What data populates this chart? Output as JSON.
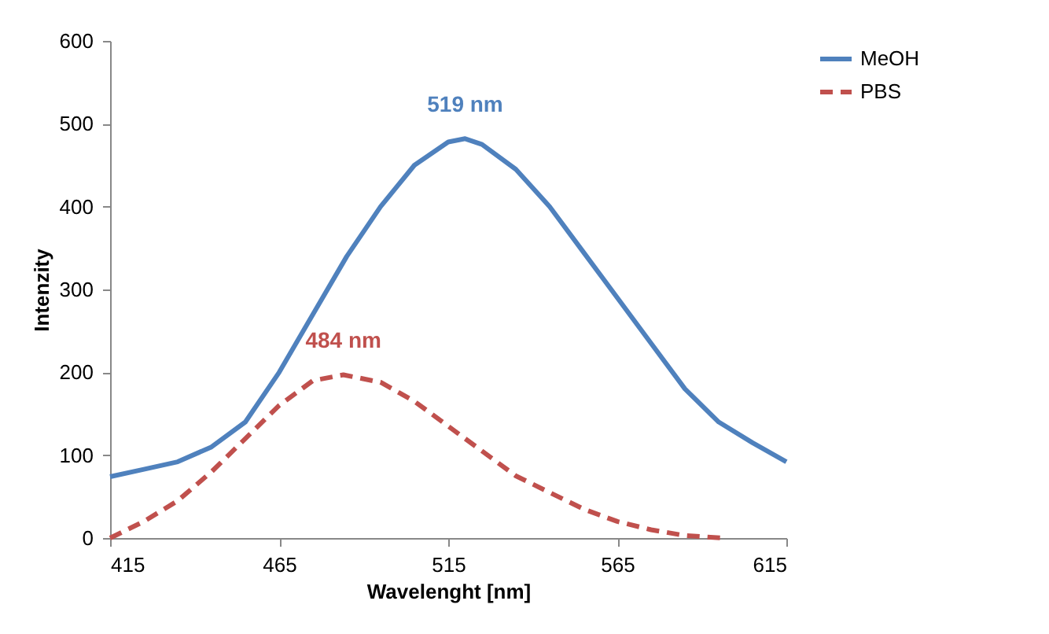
{
  "chart_data": {
    "type": "line",
    "xlabel": "Wavelenght [nm]",
    "ylabel": "Intenzity",
    "xlim": [
      415,
      615
    ],
    "ylim": [
      0,
      600
    ],
    "xticks": [
      415,
      465,
      515,
      565,
      615
    ],
    "yticks": [
      0,
      100,
      200,
      300,
      400,
      500,
      600
    ],
    "grid": false,
    "legend": "right",
    "marker": "none",
    "series": [
      {
        "name": "MeOH",
        "color": "#4f81bd",
        "line_style": "solid",
        "x": [
          415,
          425,
          435,
          445,
          455,
          465,
          475,
          485,
          495,
          505,
          515,
          520,
          525,
          535,
          545,
          555,
          565,
          575,
          585,
          595,
          605,
          615
        ],
        "values": [
          74,
          83,
          92,
          110,
          140,
          200,
          270,
          340,
          400,
          450,
          478,
          482,
          475,
          445,
          400,
          345,
          290,
          235,
          180,
          140,
          115,
          92
        ]
      },
      {
        "name": "PBS",
        "color": "#c0504d",
        "line_style": "dashed",
        "x": [
          415,
          425,
          435,
          445,
          455,
          465,
          475,
          484,
          495,
          505,
          515,
          525,
          535,
          545,
          555,
          565,
          575,
          585,
          596
        ],
        "values": [
          0,
          20,
          45,
          80,
          120,
          160,
          190,
          197,
          188,
          165,
          135,
          105,
          75,
          55,
          35,
          20,
          10,
          3,
          0
        ]
      }
    ],
    "annotations": [
      "519 nm",
      "484 nm"
    ]
  }
}
